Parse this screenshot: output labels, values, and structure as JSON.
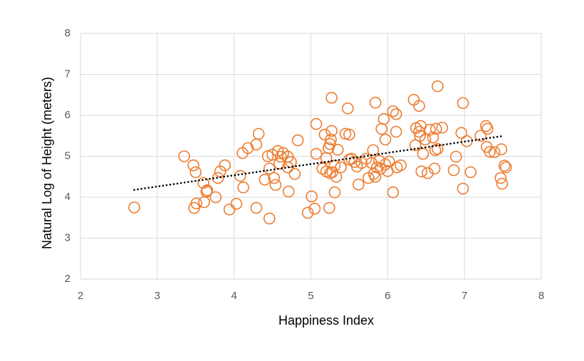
{
  "chart_data": {
    "type": "scatter",
    "x_label": "Happiness Index",
    "y_label": "Natural Log of Height (meters)",
    "color": "#ED7D31",
    "grid": true,
    "xlim": [
      2,
      8
    ],
    "xticks": [
      2,
      3,
      4,
      5,
      6,
      7,
      8
    ],
    "ylim": [
      2,
      8
    ],
    "yticks": [
      2,
      3,
      4,
      5,
      6,
      7,
      8
    ],
    "x": [
      2.7,
      3.35,
      3.47,
      3.5,
      3.48,
      3.51,
      3.61,
      3.6,
      3.65,
      3.64,
      3.76,
      3.79,
      3.82,
      3.88,
      3.94,
      4.03,
      4.08,
      4.11,
      4.12,
      4.18,
      4.29,
      4.32,
      4.29,
      4.4,
      4.44,
      4.46,
      4.46,
      4.5,
      4.52,
      4.54,
      4.57,
      4.59,
      4.61,
      4.64,
      4.7,
      4.7,
      4.71,
      4.74,
      4.79,
      4.83,
      4.96,
      5.01,
      5.05,
      5.07,
      5.07,
      5.15,
      5.18,
      5.2,
      5.2,
      5.23,
      5.25,
      5.24,
      5.25,
      5.26,
      5.27,
      5.27,
      5.28,
      5.31,
      5.31,
      5.33,
      5.35,
      5.39,
      5.45,
      5.48,
      5.5,
      5.5,
      5.53,
      5.57,
      5.6,
      5.62,
      5.66,
      5.72,
      5.75,
      5.79,
      5.81,
      5.82,
      5.84,
      5.84,
      5.86,
      5.89,
      5.91,
      5.92,
      5.95,
      5.97,
      5.97,
      6.0,
      6.02,
      6.07,
      6.07,
      6.11,
      6.11,
      6.12,
      6.17,
      6.34,
      6.36,
      6.37,
      6.41,
      6.41,
      6.42,
      6.43,
      6.44,
      6.46,
      6.49,
      6.52,
      6.55,
      6.59,
      6.61,
      6.62,
      6.63,
      6.65,
      6.65,
      6.71,
      6.86,
      6.89,
      6.96,
      6.98,
      6.98,
      7.03,
      7.08,
      7.21,
      7.28,
      7.3,
      7.29,
      7.33,
      7.39,
      7.47,
      7.48,
      7.49,
      7.52,
      7.54
    ],
    "values": [
      3.75,
      5.0,
      4.78,
      4.61,
      3.74,
      3.85,
      3.88,
      4.35,
      4.17,
      4.14,
      4.0,
      4.47,
      4.63,
      4.78,
      3.7,
      3.84,
      4.52,
      5.08,
      4.24,
      5.2,
      5.29,
      5.55,
      3.74,
      4.43,
      5.0,
      3.48,
      4.7,
      5.04,
      4.47,
      4.3,
      5.13,
      4.82,
      4.99,
      5.08,
      4.99,
      4.73,
      4.14,
      4.86,
      4.57,
      5.39,
      3.62,
      4.02,
      3.72,
      5.79,
      5.06,
      4.7,
      5.53,
      4.96,
      4.63,
      5.2,
      4.59,
      3.74,
      5.3,
      5.41,
      5.62,
      6.43,
      4.61,
      4.77,
      4.12,
      4.5,
      5.16,
      4.73,
      5.55,
      6.17,
      5.53,
      4.92,
      4.94,
      4.86,
      4.75,
      4.31,
      4.84,
      4.94,
      4.47,
      4.84,
      5.15,
      4.57,
      6.31,
      4.5,
      4.73,
      4.89,
      4.7,
      5.67,
      5.91,
      5.41,
      4.8,
      4.64,
      4.87,
      6.1,
      4.12,
      5.6,
      6.03,
      4.73,
      4.78,
      6.38,
      5.27,
      5.69,
      6.23,
      5.6,
      5.5,
      5.74,
      4.63,
      5.06,
      5.41,
      4.59,
      5.65,
      5.46,
      4.7,
      5.15,
      5.67,
      6.71,
      5.18,
      5.7,
      4.66,
      4.99,
      5.57,
      6.3,
      4.21,
      5.37,
      4.61,
      5.5,
      5.74,
      5.67,
      5.23,
      5.11,
      5.1,
      4.47,
      5.17,
      4.33,
      4.77,
      4.73
    ],
    "trendline": {
      "x": [
        2.7,
        7.52
      ],
      "y": [
        4.18,
        5.5
      ]
    }
  }
}
